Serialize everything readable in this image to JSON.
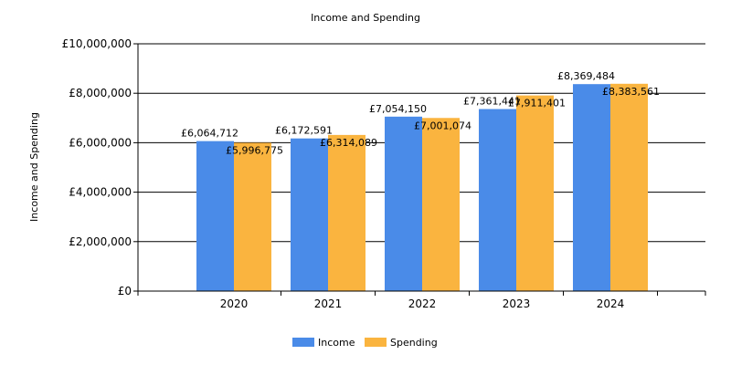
{
  "chart_data": {
    "type": "bar",
    "title": "Income and Spending",
    "xlabel": "",
    "ylabel": "Income and Spending",
    "categories": [
      "2020",
      "2021",
      "2022",
      "2023",
      "2024"
    ],
    "series": [
      {
        "name": "Income",
        "color": "#4A8BE8",
        "values": [
          6064712,
          6172591,
          7054150,
          7361441,
          8369484
        ],
        "labels": [
          "£6,064,712",
          "£6,172,591",
          "£7,054,150",
          "£7,361,441",
          "£8,369,484"
        ]
      },
      {
        "name": "Spending",
        "color": "#FAB43F",
        "values": [
          5996775,
          6314089,
          7001074,
          7911401,
          8383561
        ],
        "labels": [
          "£5,996,775",
          "£6,314,089",
          "£7,001,074",
          "£7,911,401",
          "£8,383,561"
        ]
      }
    ],
    "ylim": [
      0,
      10000000
    ],
    "yticks": [
      0,
      2000000,
      4000000,
      6000000,
      8000000,
      10000000
    ],
    "ytick_labels": [
      "£0",
      "£2,000,000",
      "£4,000,000",
      "£6,000,000",
      "£8,000,000",
      "£10,000,000"
    ],
    "grid": true,
    "legend_position": "bottom-center"
  }
}
